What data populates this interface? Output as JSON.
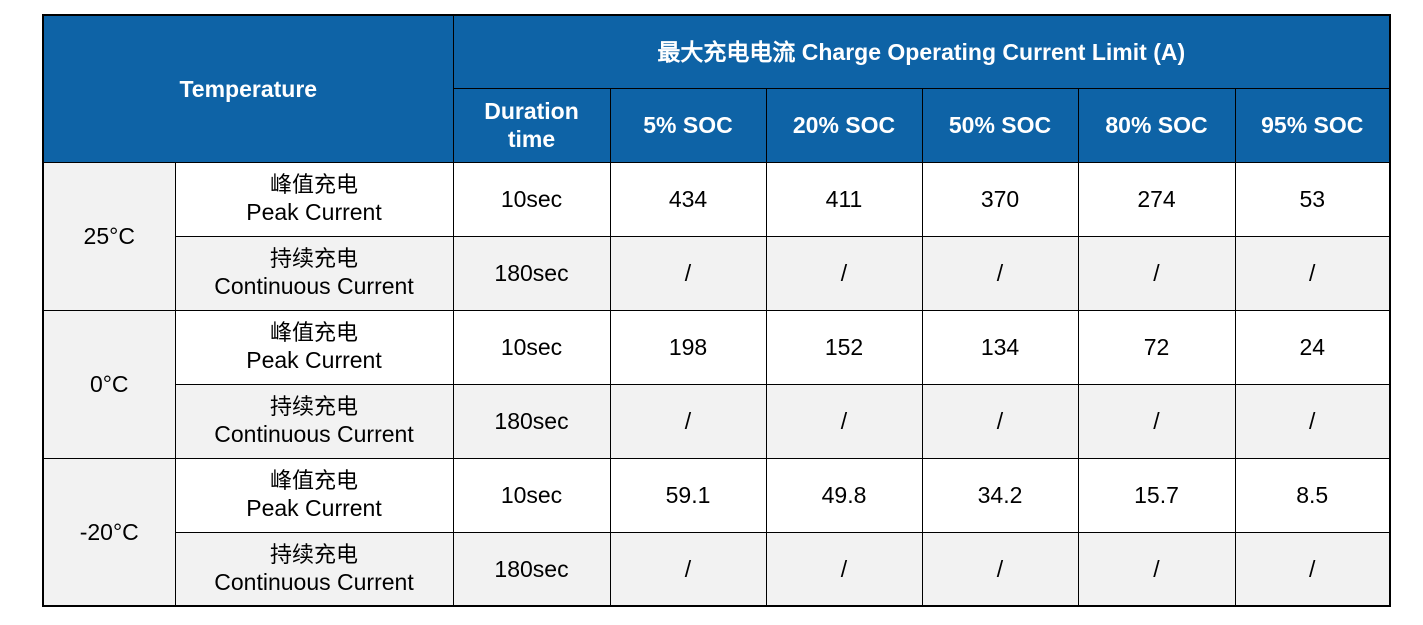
{
  "table": {
    "header": {
      "temperature": "Temperature",
      "group_title": "最大充电电流 Charge Operating Current Limit (A)",
      "duration_line1": "Duration",
      "duration_line2": "time",
      "soc_columns": [
        "5% SOC",
        "20% SOC",
        "50% SOC",
        "80% SOC",
        "95% SOC"
      ]
    },
    "groups": [
      {
        "temperature": "25°C",
        "rows": [
          {
            "label_cn": "峰值充电",
            "label_en": "Peak Current",
            "duration": "10sec",
            "values": [
              "434",
              "411",
              "370",
              "274",
              "53"
            ]
          },
          {
            "label_cn": "持续充电",
            "label_en": "Continuous Current",
            "duration": "180sec",
            "values": [
              "/",
              "/",
              "/",
              "/",
              "/"
            ]
          }
        ]
      },
      {
        "temperature": "0°C",
        "rows": [
          {
            "label_cn": "峰值充电",
            "label_en": "Peak Current",
            "duration": "10sec",
            "values": [
              "198",
              "152",
              "134",
              "72",
              "24"
            ]
          },
          {
            "label_cn": "持续充电",
            "label_en": "Continuous Current",
            "duration": "180sec",
            "values": [
              "/",
              "/",
              "/",
              "/",
              "/"
            ]
          }
        ]
      },
      {
        "temperature": "-20°C",
        "rows": [
          {
            "label_cn": "峰值充电",
            "label_en": "Peak Current",
            "duration": "10sec",
            "values": [
              "59.1",
              "49.8",
              "34.2",
              "15.7",
              "8.5"
            ]
          },
          {
            "label_cn": "持续充电",
            "label_en": "Continuous Current",
            "duration": "180sec",
            "values": [
              "/",
              "/",
              "/",
              "/",
              "/"
            ]
          }
        ]
      }
    ],
    "colors": {
      "header_bg": "#0e63a6",
      "header_text": "#ffffff",
      "shade_bg": "#f2f2f2",
      "border": "#000000"
    }
  }
}
